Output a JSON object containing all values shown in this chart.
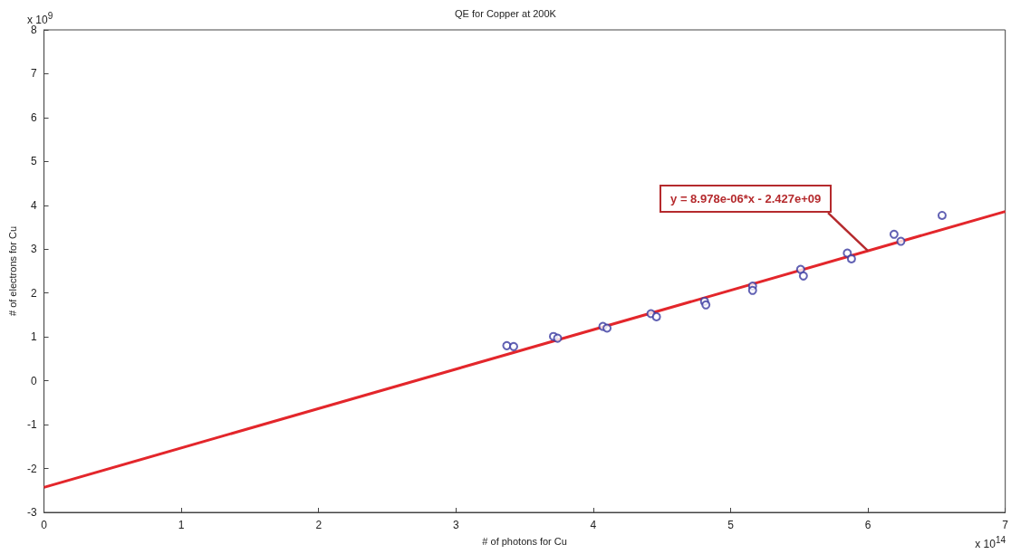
{
  "chart_data": {
    "type": "scatter",
    "title": "QE for Copper at 200K",
    "xlabel": "# of photons for Cu",
    "ylabel": "# of electrons for Cu",
    "xlim": [
      0,
      7
    ],
    "ylim": [
      -3,
      8
    ],
    "xticks": [
      0,
      1,
      2,
      3,
      4,
      5,
      6,
      7
    ],
    "yticks": [
      -3,
      -2,
      -1,
      0,
      1,
      2,
      3,
      4,
      5,
      6,
      7,
      8
    ],
    "grid": false,
    "marker": "circle",
    "series": [
      {
        "color": "#3a3aa0",
        "x": [
          3.37,
          3.42,
          3.71,
          3.74,
          4.07,
          4.1,
          4.42,
          4.46,
          4.81,
          4.82,
          5.16,
          5.16,
          5.51,
          5.53,
          5.85,
          5.88,
          6.19,
          6.24,
          6.54
        ],
        "values": [
          0.8,
          0.78,
          1.01,
          0.97,
          1.24,
          1.2,
          1.53,
          1.46,
          1.81,
          1.73,
          2.16,
          2.06,
          2.54,
          2.39,
          2.91,
          2.78,
          3.34,
          3.18,
          3.77
        ]
      },
      {
        "type": "line",
        "color": "#e3262b",
        "marker": "none",
        "line_style": "solid",
        "x": [
          0,
          7
        ],
        "values": [
          -2.43,
          3.86
        ]
      }
    ],
    "annotations": [
      {
        "text": "y = 8.978e-06*x - 2.427e+09",
        "x": 6.0,
        "y": 2.96
      },
      "x 10$^{9}$",
      "x 10$^{14}$"
    ]
  }
}
